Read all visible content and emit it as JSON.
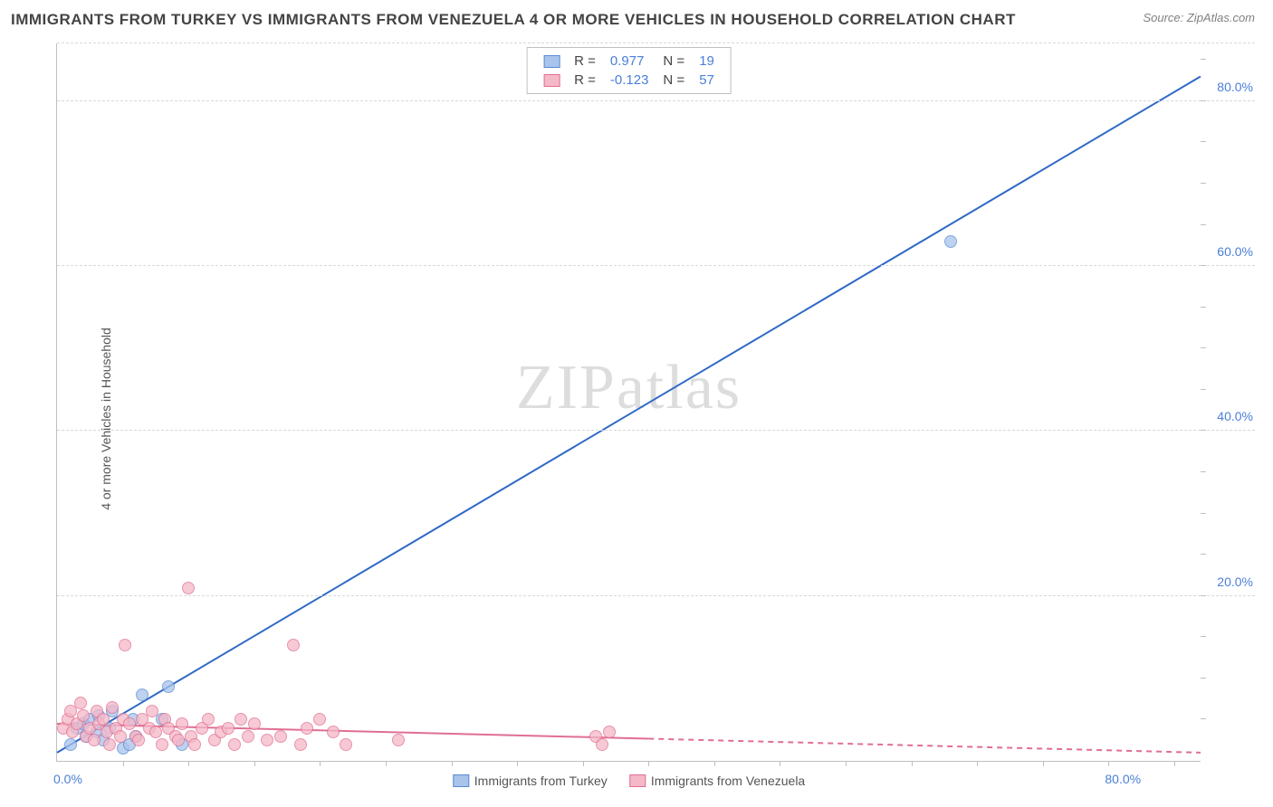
{
  "title": "IMMIGRANTS FROM TURKEY VS IMMIGRANTS FROM VENEZUELA 4 OR MORE VEHICLES IN HOUSEHOLD CORRELATION CHART",
  "source": "Source: ZipAtlas.com",
  "ylabel": "4 or more Vehicles in Household",
  "watermark": "ZIPatlas",
  "chart": {
    "type": "scatter",
    "xlim": [
      0,
      87
    ],
    "ylim": [
      0,
      87
    ],
    "xticks": [
      {
        "val": 0,
        "label": "0.0%"
      },
      {
        "val": 80,
        "label": "80.0%"
      }
    ],
    "yticks": [
      {
        "val": 20,
        "label": "20.0%"
      },
      {
        "val": 40,
        "label": "40.0%"
      },
      {
        "val": 60,
        "label": "60.0%"
      },
      {
        "val": 80,
        "label": "80.0%"
      }
    ],
    "grid_color": "#d9d9d9",
    "axis_color": "#bfbfbf",
    "background_color": "#ffffff",
    "series": [
      {
        "name": "Immigrants from Turkey",
        "color_fill": "#a8c4ec",
        "color_stroke": "#5a8ad0",
        "marker_radius": 7,
        "line_color": "#2f69c6",
        "line_width": 2,
        "r": "0.977",
        "n": "19",
        "trend": {
          "x1": 0,
          "y1": 1,
          "x2": 87,
          "y2": 83,
          "dash_after": null
        },
        "points": [
          [
            1.0,
            2.0
          ],
          [
            1.5,
            4.0
          ],
          [
            2.0,
            4.5
          ],
          [
            2.2,
            3.0
          ],
          [
            2.5,
            5.0
          ],
          [
            3.0,
            3.5
          ],
          [
            3.2,
            5.5
          ],
          [
            3.5,
            2.5
          ],
          [
            4.0,
            4.0
          ],
          [
            4.2,
            6.0
          ],
          [
            5.0,
            1.5
          ],
          [
            5.5,
            2.0
          ],
          [
            5.8,
            5.0
          ],
          [
            6.0,
            3.0
          ],
          [
            6.5,
            8.0
          ],
          [
            8.0,
            5.0
          ],
          [
            8.5,
            9.0
          ],
          [
            9.5,
            2.0
          ],
          [
            68.0,
            63.0
          ]
        ]
      },
      {
        "name": "Immigrants from Venezuela",
        "color_fill": "#f5b8c8",
        "color_stroke": "#e06f92",
        "marker_radius": 7,
        "line_color": "#e06f92",
        "line_width": 2,
        "r": "-0.123",
        "n": "57",
        "trend": {
          "x1": 0,
          "y1": 4.5,
          "x2": 87,
          "y2": 1.0,
          "dash_after": 45
        },
        "points": [
          [
            0.5,
            4.0
          ],
          [
            0.8,
            5.0
          ],
          [
            1.0,
            6.0
          ],
          [
            1.2,
            3.5
          ],
          [
            1.5,
            4.5
          ],
          [
            1.8,
            7.0
          ],
          [
            2.0,
            5.5
          ],
          [
            2.2,
            3.0
          ],
          [
            2.5,
            4.0
          ],
          [
            2.8,
            2.5
          ],
          [
            3.0,
            6.0
          ],
          [
            3.2,
            4.5
          ],
          [
            3.5,
            5.0
          ],
          [
            3.8,
            3.5
          ],
          [
            4.0,
            2.0
          ],
          [
            4.2,
            6.5
          ],
          [
            4.5,
            4.0
          ],
          [
            4.8,
            3.0
          ],
          [
            5.0,
            5.0
          ],
          [
            5.2,
            14.0
          ],
          [
            5.5,
            4.5
          ],
          [
            6.0,
            3.0
          ],
          [
            6.2,
            2.5
          ],
          [
            6.5,
            5.0
          ],
          [
            7.0,
            4.0
          ],
          [
            7.2,
            6.0
          ],
          [
            7.5,
            3.5
          ],
          [
            8.0,
            2.0
          ],
          [
            8.2,
            5.0
          ],
          [
            8.5,
            4.0
          ],
          [
            9.0,
            3.0
          ],
          [
            9.2,
            2.5
          ],
          [
            9.5,
            4.5
          ],
          [
            10.0,
            21.0
          ],
          [
            10.2,
            3.0
          ],
          [
            10.5,
            2.0
          ],
          [
            11.0,
            4.0
          ],
          [
            11.5,
            5.0
          ],
          [
            12.0,
            2.5
          ],
          [
            12.5,
            3.5
          ],
          [
            13.0,
            4.0
          ],
          [
            13.5,
            2.0
          ],
          [
            14.0,
            5.0
          ],
          [
            14.5,
            3.0
          ],
          [
            15.0,
            4.5
          ],
          [
            16.0,
            2.5
          ],
          [
            17.0,
            3.0
          ],
          [
            18.0,
            14.0
          ],
          [
            18.5,
            2.0
          ],
          [
            19.0,
            4.0
          ],
          [
            20.0,
            5.0
          ],
          [
            21.0,
            3.5
          ],
          [
            22.0,
            2.0
          ],
          [
            26.0,
            2.5
          ],
          [
            41.0,
            3.0
          ],
          [
            41.5,
            2.0
          ],
          [
            42.0,
            3.5
          ]
        ]
      }
    ]
  },
  "legend_labels": {
    "r_prefix": "R  =",
    "n_prefix": "N  ="
  }
}
